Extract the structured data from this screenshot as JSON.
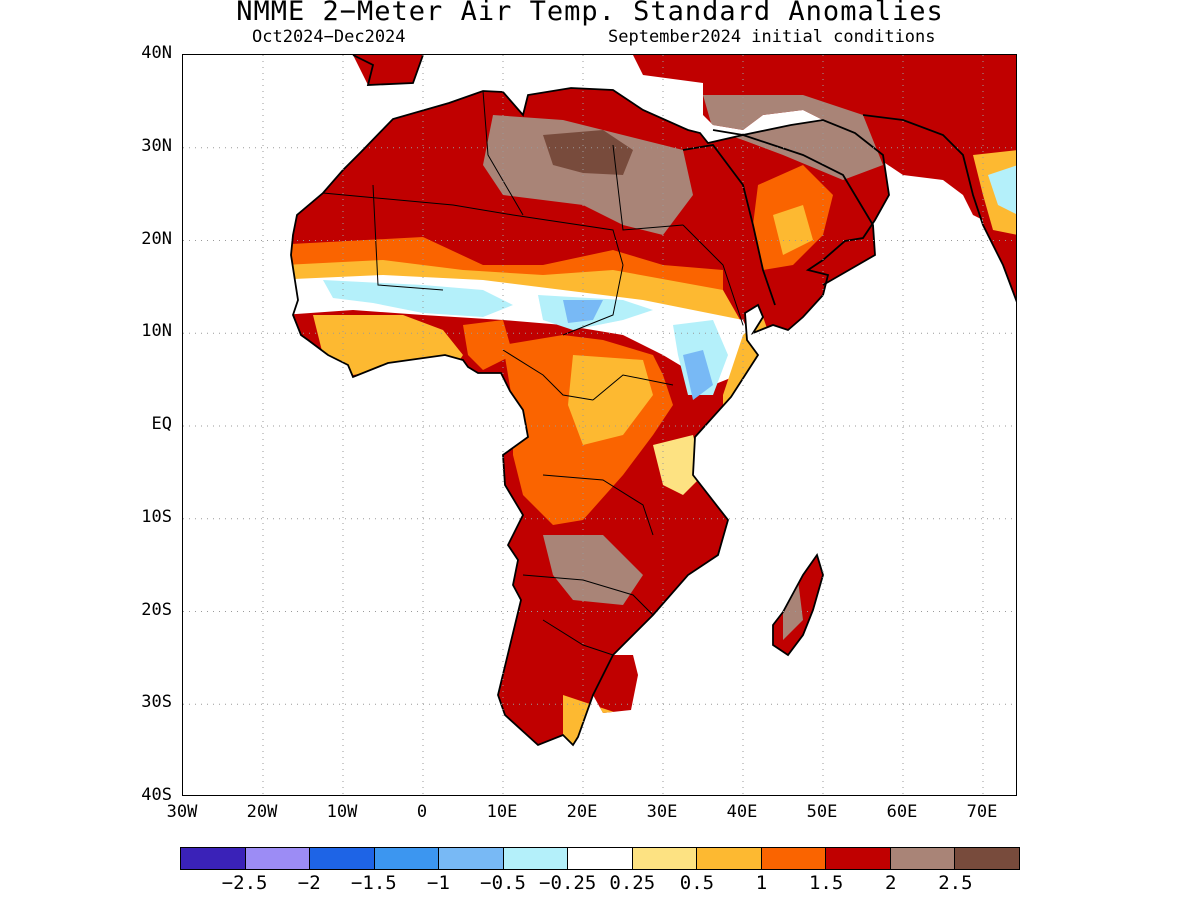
{
  "title": "NMME 2−Meter Air Temp. Standard Anomalies",
  "subtitle_left": "Oct2024−Dec2024",
  "subtitle_right": "September2024 initial conditions",
  "lat_labels": [
    "40N",
    "30N",
    "20N",
    "10N",
    "EQ",
    "10S",
    "20S",
    "30S",
    "40S"
  ],
  "lon_labels": [
    "30W",
    "20W",
    "10W",
    "0",
    "10E",
    "20E",
    "30E",
    "40E",
    "50E",
    "60E",
    "70E"
  ],
  "colorbar": {
    "colors": [
      "#3a22b8",
      "#9c8cf5",
      "#1e64e6",
      "#3c96f0",
      "#78b9f5",
      "#b4f0fa",
      "#ffffff",
      "#fde282",
      "#fdb931",
      "#fa6400",
      "#c00000",
      "#a98477",
      "#784b3c"
    ],
    "labels": [
      "−2.5",
      "−2",
      "−1.5",
      "−1",
      "−0.5",
      "−0.25",
      "0.25",
      "0.5",
      "1",
      "1.5",
      "2",
      "2.5"
    ]
  },
  "map": {
    "domain": {
      "lon": [
        -30,
        75
      ],
      "lat": [
        -40,
        40
      ]
    },
    "ocean_color": "#ffffff",
    "coastline_color": "#000000",
    "grid": "dotted"
  }
}
